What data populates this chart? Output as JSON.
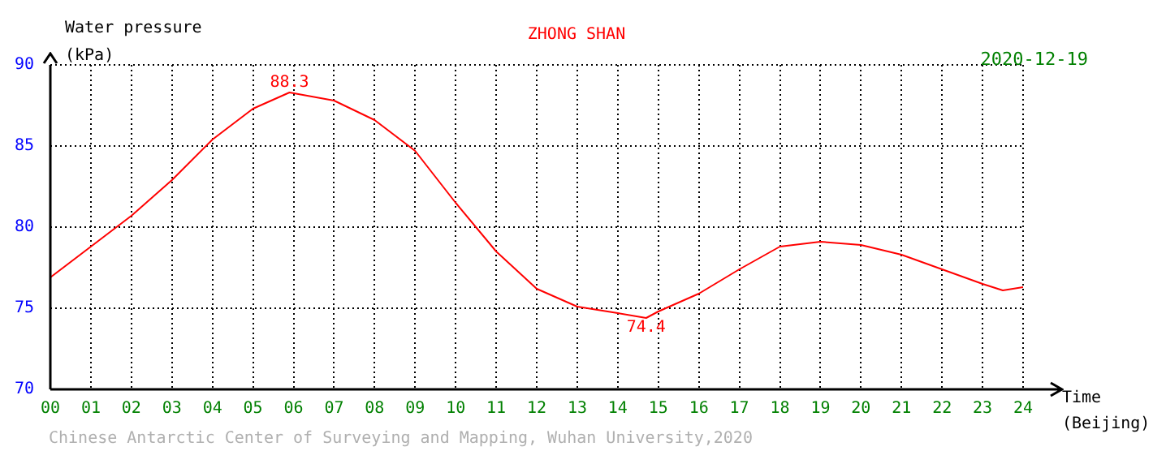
{
  "chart_data": {
    "type": "line",
    "title": "ZHONG SHAN",
    "subtitle": "2020-12-19",
    "ylabel": "Water pressure (kPa)",
    "xlabel": "Time (Beijing)",
    "x": [
      0,
      1,
      2,
      3,
      4,
      5,
      5.9,
      7,
      8,
      9,
      10,
      11,
      12,
      13,
      14,
      14.7,
      15,
      16,
      17,
      18,
      19,
      20,
      21,
      22,
      23,
      23.5,
      24
    ],
    "series": [
      {
        "color": "#ff0000",
        "values": [
          76.9,
          78.8,
          80.7,
          82.9,
          85.4,
          87.3,
          88.3,
          87.8,
          86.6,
          84.7,
          81.5,
          78.5,
          76.2,
          75.1,
          74.7,
          74.4,
          74.8,
          75.9,
          77.4,
          78.8,
          79.1,
          78.9,
          78.3,
          77.4,
          76.5,
          76.1,
          76.3
        ]
      }
    ],
    "xlim": [
      0,
      24
    ],
    "xticks": [
      {
        "value": 0,
        "label": "00"
      },
      {
        "value": 1,
        "label": "01"
      },
      {
        "value": 2,
        "label": "02"
      },
      {
        "value": 3,
        "label": "03"
      },
      {
        "value": 4,
        "label": "04"
      },
      {
        "value": 5,
        "label": "05"
      },
      {
        "value": 6,
        "label": "06"
      },
      {
        "value": 7,
        "label": "07"
      },
      {
        "value": 8,
        "label": "08"
      },
      {
        "value": 9,
        "label": "09"
      },
      10,
      11,
      12,
      13,
      14,
      15,
      16,
      17,
      18,
      19,
      20,
      21,
      22,
      23,
      24
    ],
    "ylim": [
      70,
      90
    ],
    "yticks": [
      70,
      75,
      80,
      85,
      90
    ],
    "grid": true,
    "legend": false,
    "marker": "none",
    "line_style": "solid",
    "annotations": [
      {
        "text": "88.3",
        "x": 5.9,
        "y": 88.3
      },
      {
        "text": "74.4",
        "x": 14.7,
        "y": 74.4
      },
      "Chinese Antarctic Center of Surveying and Mapping, Wuhan University,2020"
    ]
  }
}
